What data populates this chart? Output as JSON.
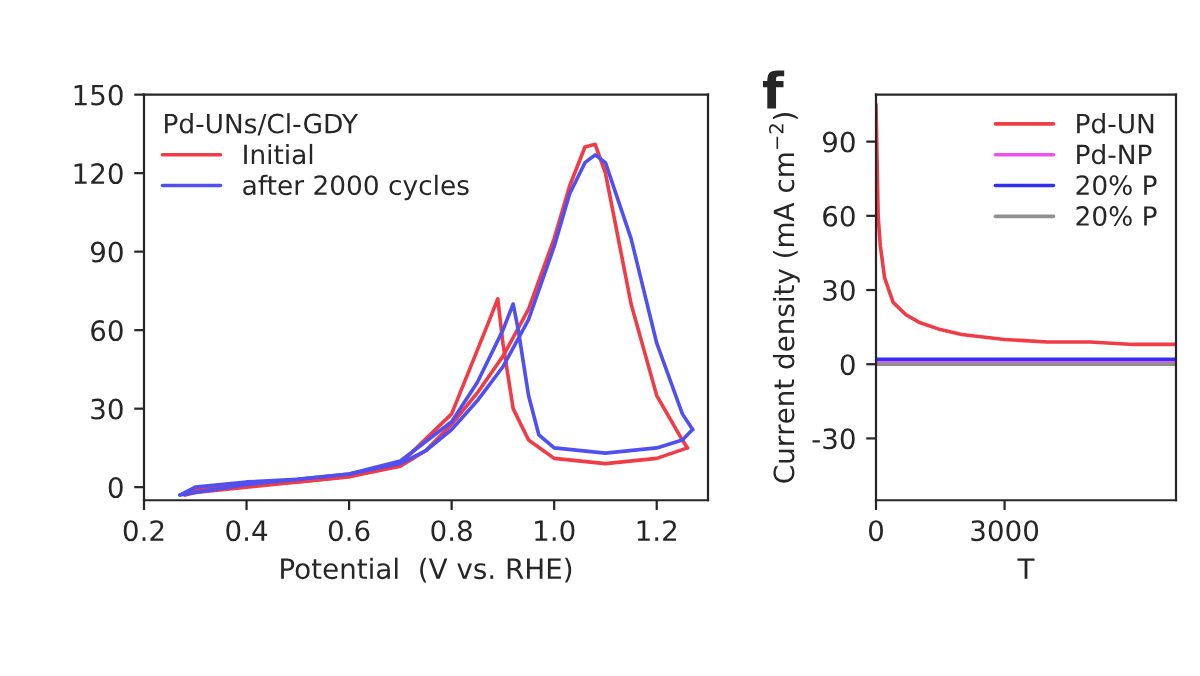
{
  "chart_data": [
    {
      "type": "line",
      "xlabel": "Potential  (V vs. RHE)",
      "legend_title": "Pd-UNs/Cl-GDY",
      "legend": "top left",
      "grid": false,
      "xlim": [
        0.2,
        1.3
      ],
      "xticks": [
        0.2,
        0.4,
        0.6,
        0.8,
        {
          "value": 1.0,
          "label": "1.0"
        },
        1.2
      ],
      "ylim": [
        -5,
        150
      ],
      "yticks": [
        0,
        30,
        60,
        90,
        120,
        150
      ],
      "series": [
        {
          "name": "Initial",
          "color": "#f03c46",
          "x": [
            0.28,
            0.3,
            0.4,
            0.5,
            0.6,
            0.7,
            0.75,
            0.8,
            0.85,
            0.9,
            0.95,
            1.0,
            1.03,
            1.06,
            1.08,
            1.1,
            1.15,
            1.2,
            1.25,
            1.26
          ],
          "values": [
            -3,
            -1,
            1,
            2,
            4,
            8,
            14,
            24,
            36,
            50,
            68,
            95,
            115,
            130,
            131,
            120,
            70,
            35,
            18,
            15
          ]
        },
        {
          "color": "#f03c46",
          "x": [
            1.26,
            1.2,
            1.1,
            1.0,
            0.95,
            0.92,
            0.9,
            0.89,
            0.87,
            0.8,
            0.7,
            0.6,
            0.5,
            0.4,
            0.3,
            0.28
          ],
          "values": [
            15,
            11,
            9,
            11,
            18,
            30,
            55,
            72,
            62,
            28,
            9,
            4,
            2,
            0,
            -2,
            -3
          ]
        },
        {
          "name": "after 2000 cycles",
          "color": "#5050f0",
          "x": [
            0.27,
            0.3,
            0.4,
            0.5,
            0.6,
            0.7,
            0.75,
            0.8,
            0.85,
            0.9,
            0.95,
            1.0,
            1.03,
            1.06,
            1.08,
            1.1,
            1.15,
            1.2,
            1.25,
            1.27
          ],
          "values": [
            -3,
            0,
            2,
            3,
            5,
            9,
            14,
            22,
            33,
            46,
            64,
            92,
            112,
            124,
            127,
            124,
            95,
            55,
            28,
            22
          ]
        },
        {
          "color": "#5050f0",
          "x": [
            1.27,
            1.25,
            1.2,
            1.1,
            1.0,
            0.97,
            0.95,
            0.93,
            0.92,
            0.9,
            0.85,
            0.8,
            0.7,
            0.6,
            0.5,
            0.4,
            0.3,
            0.27
          ],
          "values": [
            22,
            18,
            15,
            13,
            15,
            20,
            35,
            60,
            70,
            60,
            40,
            25,
            10,
            5,
            3,
            1,
            -2,
            -3
          ]
        }
      ]
    },
    {
      "type": "line",
      "xlabel": "T",
      "ylabel": "Current density (mA cm$^{−2}$)",
      "annotations": [
        "f"
      ],
      "legend": "top right",
      "grid": false,
      "xlim": [
        0,
        7000
      ],
      "xticks": [
        0,
        3000
      ],
      "ylim": [
        -55,
        109
      ],
      "yticks": [
        -30,
        0,
        30,
        60,
        90
      ],
      "series": [
        {
          "name": "Pd-UN",
          "color": "#f03c46",
          "x": [
            0,
            50,
            100,
            200,
            400,
            700,
            1000,
            1500,
            2000,
            3000,
            4000,
            5000,
            6000,
            7000
          ],
          "values": [
            105,
            60,
            48,
            35,
            25,
            20,
            17,
            14,
            12,
            10,
            9,
            9,
            8,
            8
          ]
        },
        {
          "name": "Pd-NP",
          "color": "#f050f0",
          "x": [
            0,
            7000
          ],
          "values": [
            1,
            1
          ]
        },
        {
          "name": "20% P",
          "color": "#3030f0",
          "x": [
            0,
            7000
          ],
          "values": [
            2,
            2
          ]
        },
        {
          "name": "20% P",
          "color": "#909090",
          "x": [
            0,
            7000
          ],
          "values": [
            0,
            0
          ]
        }
      ]
    }
  ]
}
